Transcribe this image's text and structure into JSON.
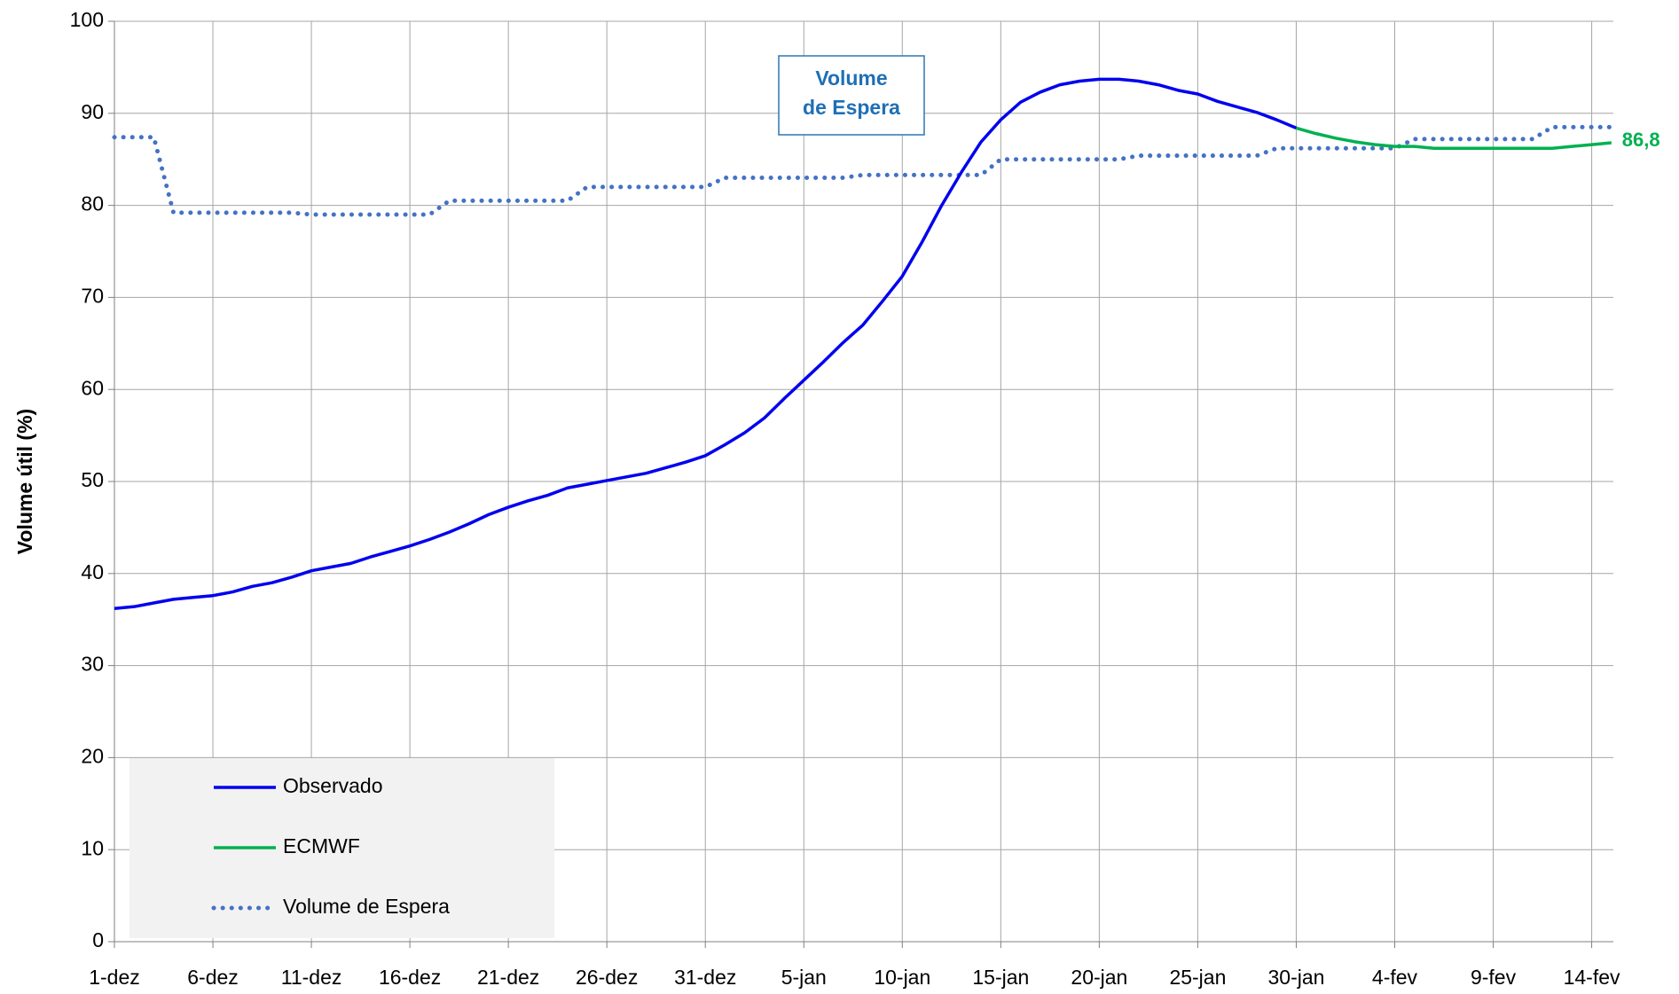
{
  "chart_data": {
    "type": "line",
    "y_label": "Volume útil (%)",
    "annotation": [
      "Volume",
      "de Espera"
    ],
    "categories": [
      "1-dez",
      null,
      null,
      null,
      null,
      "6-dez",
      null,
      null,
      null,
      null,
      "11-dez",
      null,
      null,
      null,
      null,
      "16-dez",
      null,
      null,
      null,
      null,
      "21-dez",
      null,
      null,
      null,
      null,
      "26-dez",
      null,
      null,
      null,
      null,
      "31-dez",
      null,
      null,
      null,
      null,
      "5-jan",
      null,
      null,
      null,
      null,
      "10-jan",
      null,
      null,
      null,
      null,
      "15-jan",
      null,
      null,
      null,
      null,
      "20-jan",
      null,
      null,
      null,
      null,
      "25-jan",
      null,
      null,
      null,
      null,
      "30-jan",
      null,
      null,
      null,
      null,
      "4-fev",
      null,
      null,
      null,
      null,
      "9-fev",
      null,
      null,
      null,
      null,
      "14-fev",
      null
    ],
    "series": [
      {
        "name": "Observado",
        "color": "#0000ee",
        "style": "solid",
        "values": [
          36.2,
          36.4,
          36.8,
          37.2,
          37.4,
          37.6,
          38.0,
          38.6,
          39.0,
          39.6,
          40.3,
          40.7,
          41.1,
          41.8,
          42.4,
          43.0,
          43.7,
          44.5,
          45.4,
          46.4,
          47.2,
          47.9,
          48.5,
          49.3,
          49.7,
          50.1,
          50.5,
          50.9,
          51.5,
          52.1,
          52.8,
          54.0,
          55.3,
          56.9,
          59.0,
          61.0,
          63.0,
          65.1,
          67.0,
          69.6,
          72.3,
          76.0,
          80.0,
          83.6,
          86.9,
          89.3,
          91.2,
          92.3,
          93.1,
          93.5,
          93.7,
          93.7,
          93.5,
          93.1,
          92.5,
          92.1,
          91.3,
          90.7,
          90.1,
          89.3,
          88.4,
          null,
          null,
          null,
          null,
          null,
          null,
          null,
          null,
          null,
          null,
          null,
          null,
          null,
          null,
          null,
          null
        ]
      },
      {
        "name": "ECMWF",
        "color": "#00b050",
        "style": "solid",
        "values": [
          null,
          null,
          null,
          null,
          null,
          null,
          null,
          null,
          null,
          null,
          null,
          null,
          null,
          null,
          null,
          null,
          null,
          null,
          null,
          null,
          null,
          null,
          null,
          null,
          null,
          null,
          null,
          null,
          null,
          null,
          null,
          null,
          null,
          null,
          null,
          null,
          null,
          null,
          null,
          null,
          null,
          null,
          null,
          null,
          null,
          null,
          null,
          null,
          null,
          null,
          null,
          null,
          null,
          null,
          null,
          null,
          null,
          null,
          null,
          null,
          88.4,
          87.8,
          87.3,
          86.9,
          86.6,
          86.4,
          86.4,
          86.2,
          86.2,
          86.2,
          86.2,
          86.2,
          86.2,
          86.2,
          86.4,
          86.6,
          86.8
        ],
        "value_labels": [
          null,
          null,
          null,
          null,
          null,
          null,
          null,
          null,
          null,
          null,
          null,
          null,
          null,
          null,
          null,
          null,
          null,
          null,
          null,
          null,
          null,
          null,
          null,
          null,
          null,
          null,
          null,
          null,
          null,
          null,
          null,
          null,
          null,
          null,
          null,
          null,
          null,
          null,
          null,
          null,
          null,
          null,
          null,
          null,
          null,
          null,
          null,
          null,
          null,
          null,
          null,
          null,
          null,
          null,
          null,
          null,
          null,
          null,
          null,
          null,
          null,
          null,
          null,
          null,
          null,
          null,
          null,
          null,
          null,
          null,
          null,
          null,
          null,
          null,
          null,
          null,
          "86,8"
        ]
      },
      {
        "name": "Volume de Espera",
        "color": "#4472c4",
        "style": "dotted",
        "values": [
          87.4,
          87.4,
          87.4,
          79.2,
          79.2,
          79.2,
          79.2,
          79.2,
          79.2,
          79.2,
          79.0,
          79.0,
          79.0,
          79.0,
          79.0,
          79.0,
          79.0,
          80.5,
          80.5,
          80.5,
          80.5,
          80.5,
          80.5,
          80.5,
          82.0,
          82.0,
          82.0,
          82.0,
          82.0,
          82.0,
          82.0,
          83.0,
          83.0,
          83.0,
          83.0,
          83.0,
          83.0,
          83.0,
          83.3,
          83.3,
          83.3,
          83.3,
          83.3,
          83.3,
          83.3,
          85.0,
          85.0,
          85.0,
          85.0,
          85.0,
          85.0,
          85.0,
          85.4,
          85.4,
          85.4,
          85.4,
          85.4,
          85.4,
          85.4,
          86.2,
          86.2,
          86.2,
          86.2,
          86.2,
          86.2,
          86.2,
          87.2,
          87.2,
          87.2,
          87.2,
          87.2,
          87.2,
          87.2,
          88.5,
          88.5,
          88.5,
          88.5
        ]
      }
    ],
    "ylim": [
      0,
      100
    ],
    "yticks": [
      0,
      10,
      20,
      30,
      40,
      50,
      60,
      70,
      80,
      90,
      100
    ],
    "grid": true,
    "legend": "lower left"
  }
}
